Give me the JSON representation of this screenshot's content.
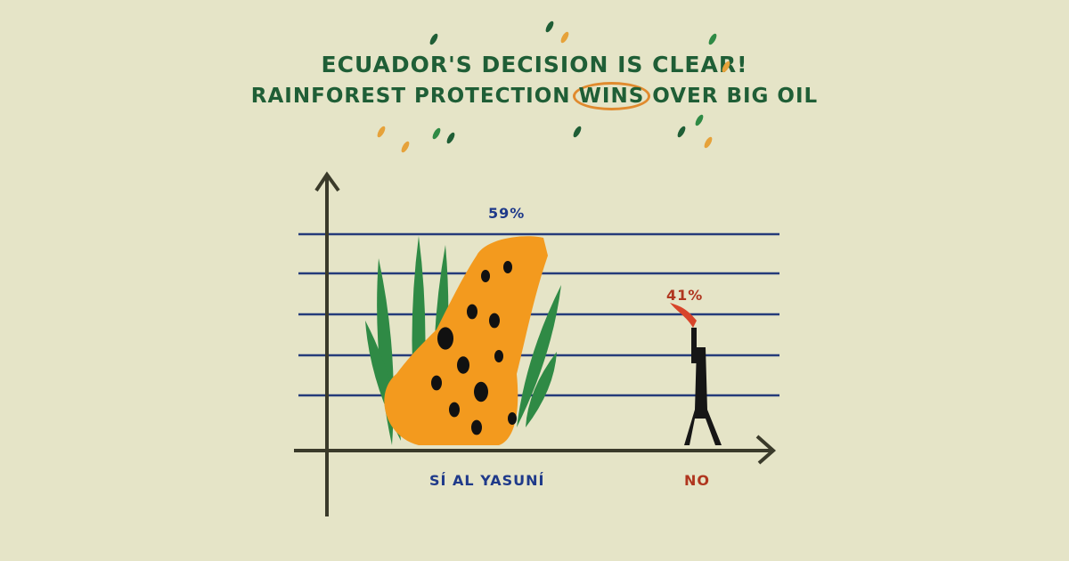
{
  "title": {
    "line1": "ECUADOR'S DECISION IS CLEAR!",
    "line2_before": "RAINFOREST PROTECTION",
    "line2_highlight": "WINS",
    "line2_after": "OVER BIG OIL"
  },
  "colors": {
    "background": "#e5e4c7",
    "title": "#1f5e36",
    "highlight_circle": "#e08a2e",
    "yes": "#1f3a8a",
    "no": "#b0361f",
    "gridlines": "#253b7a",
    "axes": "#3a3a2a"
  },
  "chart_data": {
    "type": "bar",
    "categories": [
      "SÍ AL YASUNÍ",
      "NO"
    ],
    "values": [
      59,
      41
    ],
    "value_labels": [
      "59%",
      "41%"
    ],
    "bar_illustrations": [
      "jaguar-with-plants",
      "oil-derrick-with-flare"
    ],
    "ylim": [
      0,
      65
    ],
    "grid": true,
    "legend": "none"
  }
}
